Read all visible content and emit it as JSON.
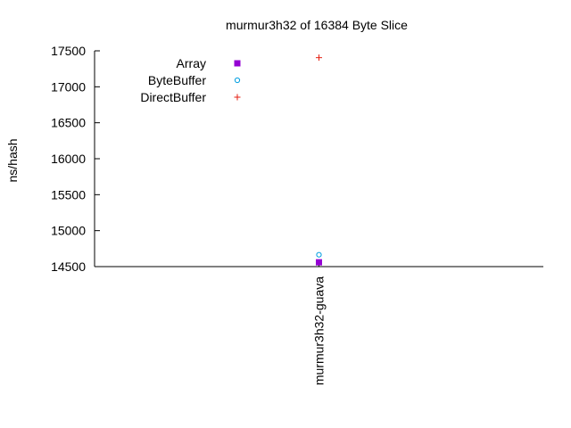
{
  "chart_data": {
    "type": "scatter",
    "title": "murmur3h32 of 16384 Byte Slice",
    "xlabel": "",
    "ylabel": "ns/hash",
    "categories": [
      "murmur3h32-guava"
    ],
    "ylim": [
      14500,
      17500
    ],
    "yticks": [
      "14500",
      "15000",
      "15500",
      "16000",
      "16500",
      "17000",
      "17500"
    ],
    "grid": false,
    "legend_position": "top-left",
    "series": [
      {
        "name": "Array",
        "marker": "filled-square",
        "color": "#9400d3",
        "values": [
          14560
        ]
      },
      {
        "name": "ByteBuffer",
        "marker": "open-circle",
        "color": "#009ee0",
        "values": [
          14665
        ]
      },
      {
        "name": "DirectBuffer",
        "marker": "plus",
        "color": "#e51e10",
        "values": [
          17405
        ]
      }
    ]
  }
}
